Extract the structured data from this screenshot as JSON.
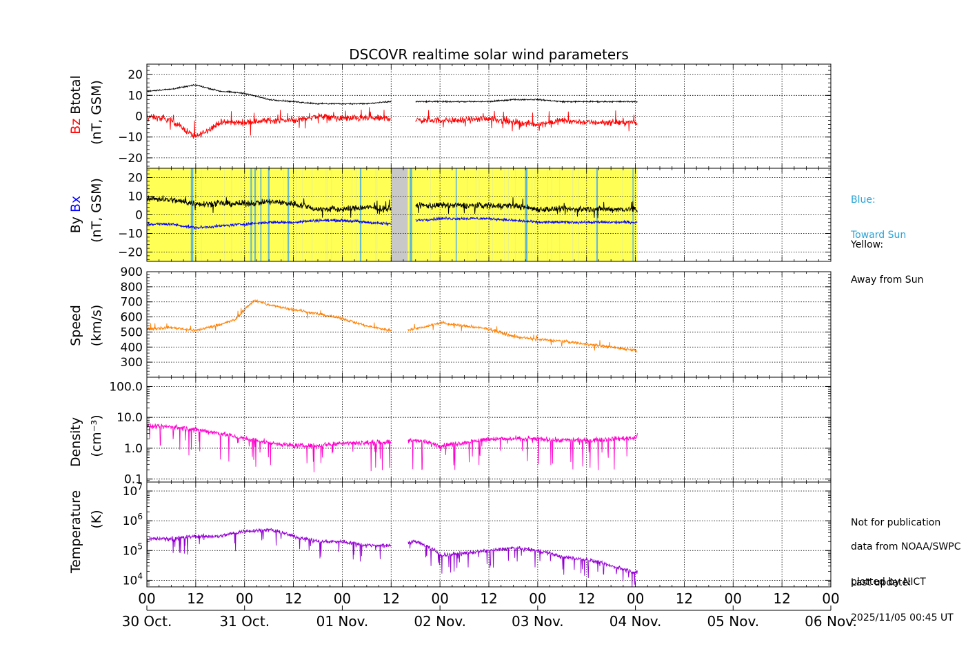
{
  "title": "DSCOVR realtime solar wind parameters",
  "side_notes": {
    "blue_label": "Blue:",
    "blue_desc": "Toward Sun",
    "yellow_label": "Yellow:",
    "yellow_desc": "Away from Sun",
    "disclaimer": "Not for publication",
    "source": "data from NOAA/SWPC",
    "plotter": "plotted by NICT",
    "update_label": "Last update:",
    "update_value": "2025/11/05 00:45 UT"
  },
  "colors": {
    "btotal": "#000000",
    "bz": "#ff0000",
    "by": "#000000",
    "bx": "#0000ff",
    "speed": "#ff8000",
    "density": "#ff00cc",
    "temperature": "#9400d3",
    "away": "#ffff55",
    "toward": "#5ab4d8",
    "gap": "#c8c8c8",
    "legend_blue": "#29a3d6"
  },
  "chart_data": [
    {
      "type": "line",
      "panel": "magnetic_total",
      "title": "DSCOVR realtime solar wind parameters",
      "ylabel_parts": [
        "Bz",
        "Btotal"
      ],
      "ylabel_units": "(nT, GSM)",
      "ylim": [
        -25,
        25
      ],
      "yticks": [
        20,
        10,
        0,
        -10,
        -20
      ],
      "ytick_labels": [
        "20",
        "10",
        "0",
        "−10",
        "−20"
      ],
      "grid": true,
      "x_days": [
        0,
        0.25,
        0.5,
        0.75,
        1,
        1.25,
        1.5,
        1.75,
        2,
        2.25,
        2.5,
        2.67,
        2.75,
        3,
        3.25,
        3.5,
        3.75,
        4,
        4.25,
        4.5,
        4.75,
        5,
        5.02
      ],
      "series": [
        {
          "name": "Btotal",
          "values": [
            12,
            13,
            15,
            12,
            11,
            8,
            7,
            6,
            6,
            6,
            7,
            null,
            7,
            7,
            7,
            7,
            8,
            8,
            7,
            7,
            7,
            7,
            7
          ]
        },
        {
          "name": "Bz",
          "values": [
            0,
            -2,
            -10,
            -3,
            -3,
            -2,
            -2,
            0,
            -1,
            -1,
            -1,
            null,
            -2,
            -2,
            -2,
            -1,
            -3,
            -4,
            -2,
            -3,
            -3,
            -3,
            -4
          ]
        }
      ]
    },
    {
      "type": "line",
      "panel": "magnetic_components",
      "ylabel_parts": [
        "By",
        "Bx"
      ],
      "ylabel_units": "(nT, GSM)",
      "ylim": [
        -25,
        25
      ],
      "yticks": [
        20,
        10,
        0,
        -10,
        -20
      ],
      "ytick_labels": [
        "20",
        "10",
        "0",
        "−10",
        "−20"
      ],
      "grid": true,
      "sector_background": "yellow = away from sun, blue stripes = toward sun, gray = data gap",
      "x_days": [
        0,
        0.25,
        0.5,
        0.75,
        1,
        1.25,
        1.5,
        1.75,
        2,
        2.25,
        2.5,
        2.67,
        2.75,
        3,
        3.25,
        3.5,
        3.75,
        4,
        4.25,
        4.5,
        4.75,
        5,
        5.02
      ],
      "series": [
        {
          "name": "By",
          "values": [
            9,
            8,
            6,
            6,
            6,
            7,
            6,
            3,
            3,
            4,
            3,
            null,
            5,
            5,
            5,
            5,
            5,
            3,
            3,
            3,
            3,
            3,
            2
          ]
        },
        {
          "name": "Bx",
          "values": [
            -5,
            -5,
            -7,
            -6,
            -5,
            -4,
            -4,
            -3,
            -3,
            -4,
            -5,
            null,
            -3,
            -2,
            -2,
            -2,
            -3,
            -4,
            -4,
            -4,
            -4,
            -4,
            -4
          ]
        }
      ]
    },
    {
      "type": "line",
      "panel": "speed",
      "ylabel": "Speed",
      "ylabel_units": "(km/s)",
      "ylim": [
        200,
        900
      ],
      "yticks": [
        900,
        800,
        700,
        600,
        500,
        400,
        300
      ],
      "ytick_labels": [
        "900",
        "800",
        "700",
        "600",
        "500",
        "400",
        "300"
      ],
      "grid": true,
      "x_days": [
        0,
        0.25,
        0.5,
        0.75,
        0.9,
        1,
        1.1,
        1.25,
        1.5,
        1.75,
        2,
        2.25,
        2.5,
        2.75,
        3,
        3.25,
        3.5,
        3.75,
        4,
        4.25,
        4.5,
        4.75,
        5,
        5.02
      ],
      "series": [
        {
          "name": "Speed",
          "values": [
            520,
            530,
            510,
            550,
            580,
            650,
            710,
            680,
            650,
            620,
            590,
            540,
            510,
            520,
            560,
            540,
            520,
            470,
            450,
            440,
            420,
            400,
            380,
            370
          ]
        }
      ]
    },
    {
      "type": "line",
      "panel": "density",
      "ylabel": "Density",
      "ylabel_units": "(cm⁻³)",
      "yscale": "log",
      "ylim": [
        0.08,
        200
      ],
      "yticks": [
        100,
        10,
        1,
        0.1
      ],
      "ytick_labels": [
        "100.0",
        "10.0",
        "1.0",
        "0.1"
      ],
      "grid": true,
      "x_days": [
        0,
        0.25,
        0.5,
        0.75,
        1,
        1.25,
        1.5,
        1.75,
        2,
        2.25,
        2.5,
        2.75,
        3,
        3.25,
        3.5,
        3.75,
        4,
        4.25,
        4.5,
        4.75,
        5,
        5.02
      ],
      "series": [
        {
          "name": "Density",
          "values": [
            5,
            5,
            4,
            3,
            2,
            1.5,
            1.2,
            1.2,
            1.5,
            1.5,
            1.6,
            1.8,
            1.2,
            1.5,
            2,
            2,
            2,
            1.8,
            1.8,
            2,
            2.2,
            2.5
          ]
        }
      ]
    },
    {
      "type": "line",
      "panel": "temperature",
      "ylabel": "Temperature",
      "ylabel_units": "(K)",
      "yscale": "log",
      "ylim": [
        6000,
        20000000
      ],
      "yticks": [
        10000000,
        1000000,
        100000,
        10000
      ],
      "ytick_labels": [
        "10⁷",
        "10⁶",
        "10⁵",
        "10⁴"
      ],
      "grid": true,
      "x_days": [
        0,
        0.25,
        0.5,
        0.75,
        1,
        1.25,
        1.5,
        1.75,
        2,
        2.25,
        2.5,
        2.75,
        3,
        3.25,
        3.5,
        3.75,
        4,
        4.25,
        4.5,
        4.75,
        5,
        5.02
      ],
      "series": [
        {
          "name": "Temperature",
          "values": [
            250000,
            250000,
            300000,
            300000,
            450000,
            500000,
            300000,
            200000,
            200000,
            150000,
            150000,
            200000,
            70000,
            80000,
            100000,
            120000,
            100000,
            60000,
            50000,
            30000,
            18000,
            20000
          ]
        }
      ]
    }
  ],
  "x_axis": {
    "hour_labels": [
      "00",
      "12",
      "00",
      "12",
      "00",
      "12",
      "00",
      "12",
      "00",
      "12",
      "00",
      "12",
      "00",
      "12",
      "00"
    ],
    "date_labels": [
      "30 Oct.",
      "31 Oct.",
      "01 Nov.",
      "02 Nov.",
      "03 Nov.",
      "04 Nov.",
      "05 Nov.",
      "06 Nov."
    ],
    "range_days": [
      0,
      7
    ]
  }
}
